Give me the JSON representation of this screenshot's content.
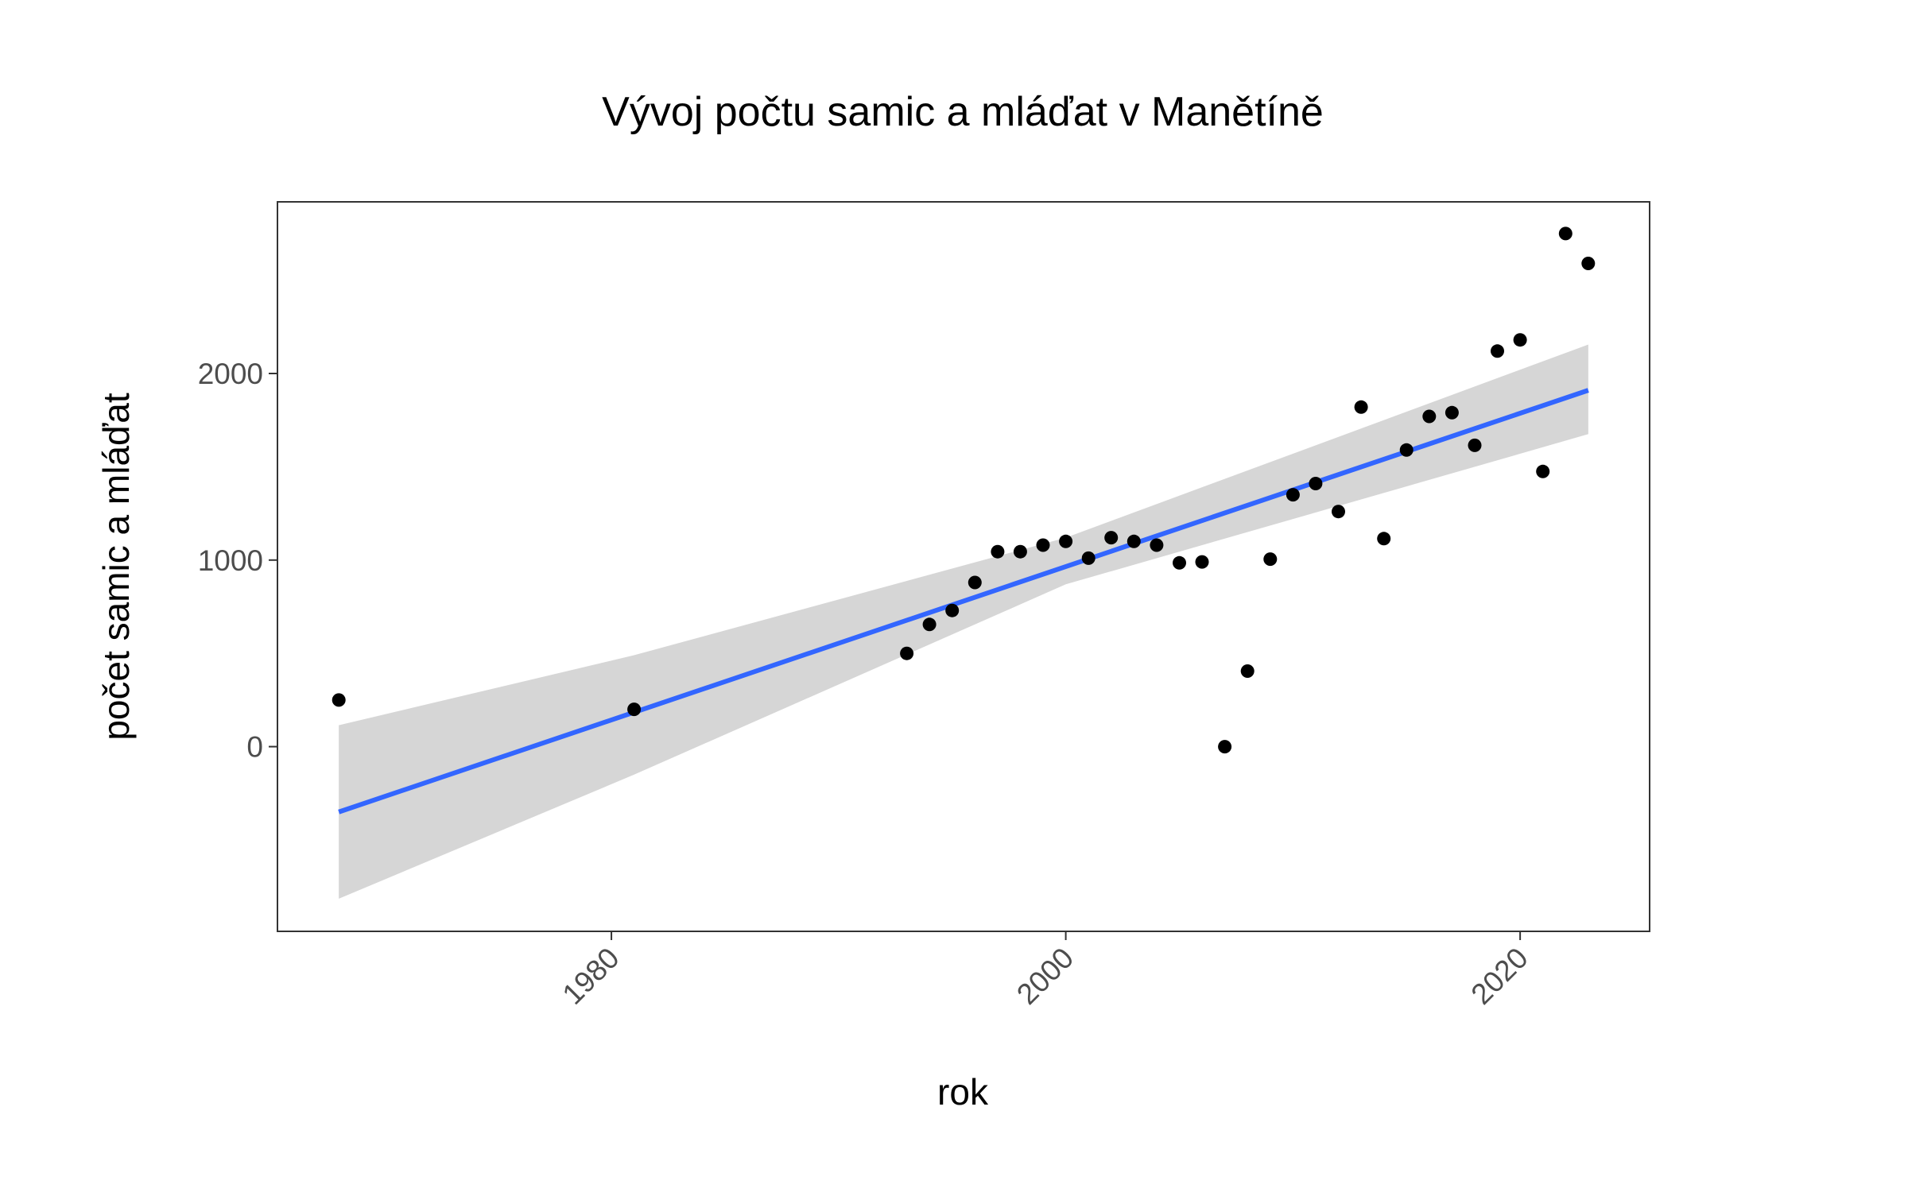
{
  "chart_data": {
    "type": "scatter",
    "title": "Vývoj počtu samic a mláďat v Manětíně",
    "xlabel": "rok",
    "ylabel": "počet samic a mláďat",
    "xlim": [
      1965.3,
      2025.7
    ],
    "ylim": [
      -990,
      2920
    ],
    "x_ticks": [
      1980,
      2000,
      2020
    ],
    "y_ticks": [
      0,
      1000,
      2000
    ],
    "grid": false,
    "legend": "none",
    "point_color": "#000000",
    "points": [
      {
        "x": 1968,
        "y": 250
      },
      {
        "x": 1981,
        "y": 200
      },
      {
        "x": 1993,
        "y": 500
      },
      {
        "x": 1994,
        "y": 655
      },
      {
        "x": 1995,
        "y": 730
      },
      {
        "x": 1996,
        "y": 880
      },
      {
        "x": 1997,
        "y": 1045
      },
      {
        "x": 1998,
        "y": 1045
      },
      {
        "x": 1999,
        "y": 1080
      },
      {
        "x": 2000,
        "y": 1100
      },
      {
        "x": 2001,
        "y": 1010
      },
      {
        "x": 2002,
        "y": 1120
      },
      {
        "x": 2003,
        "y": 1100
      },
      {
        "x": 2004,
        "y": 1080
      },
      {
        "x": 2005,
        "y": 985
      },
      {
        "x": 2006,
        "y": 990
      },
      {
        "x": 2007,
        "y": 0
      },
      {
        "x": 2008,
        "y": 405
      },
      {
        "x": 2009,
        "y": 1005
      },
      {
        "x": 2010,
        "y": 1350
      },
      {
        "x": 2011,
        "y": 1410
      },
      {
        "x": 2012,
        "y": 1260
      },
      {
        "x": 2013,
        "y": 1820
      },
      {
        "x": 2014,
        "y": 1115
      },
      {
        "x": 2015,
        "y": 1590
      },
      {
        "x": 2016,
        "y": 1770
      },
      {
        "x": 2017,
        "y": 1790
      },
      {
        "x": 2018,
        "y": 1615
      },
      {
        "x": 2019,
        "y": 2120
      },
      {
        "x": 2020,
        "y": 2180
      },
      {
        "x": 2021,
        "y": 1475
      },
      {
        "x": 2022,
        "y": 2750
      },
      {
        "x": 2023,
        "y": 2590
      }
    ],
    "trend": {
      "method": "linear",
      "color": "#3366ff",
      "ribbon_color": "#d6d6d6",
      "x": [
        1968,
        1981,
        2000,
        2023
      ],
      "fit": [
        -350,
        180,
        1000,
        1910
      ],
      "lower": [
        -815,
        -150,
        870,
        1675
      ],
      "upper": [
        115,
        490,
        1120,
        2155
      ]
    }
  }
}
